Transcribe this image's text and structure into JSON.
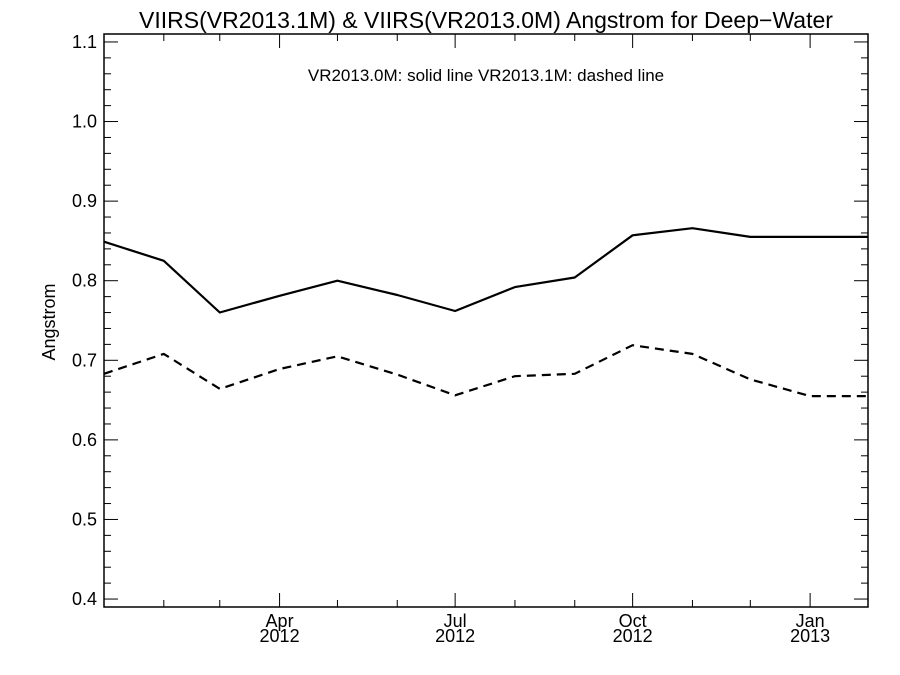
{
  "chart_data": {
    "type": "line",
    "title": "VIIRS(VR2013.1M) & VIIRS(VR2013.0M)  Angstrom for Deep−Water",
    "annotation": "VR2013.0M: solid line   VR2013.1M: dashed line",
    "ylabel": "Angstrom",
    "xlabel": "",
    "ylim": [
      0.39,
      1.11
    ],
    "xlim": [
      "2012-01-01",
      "2013-01-31"
    ],
    "yticks": [
      "0.4",
      "0.5",
      "0.6",
      "0.7",
      "0.8",
      "0.9",
      "1.0",
      "1.1"
    ],
    "xticks": [
      {
        "month": "Apr",
        "year": "2012",
        "date": "2012-04-01"
      },
      {
        "month": "Jul",
        "year": "2012",
        "date": "2012-07-01"
      },
      {
        "month": "Oct",
        "year": "2012",
        "date": "2012-10-01"
      },
      {
        "month": "Jan",
        "year": "2013",
        "date": "2013-01-01"
      }
    ],
    "x": [
      "2012-01-01",
      "2012-02-01",
      "2012-03-01",
      "2012-04-01",
      "2012-05-01",
      "2012-06-01",
      "2012-07-01",
      "2012-08-01",
      "2012-09-01",
      "2012-10-01",
      "2012-11-01",
      "2012-12-01",
      "2013-01-01",
      "2013-01-31"
    ],
    "series": [
      {
        "style": "solid",
        "values": [
          0.849,
          0.825,
          0.76,
          0.781,
          0.8,
          0.782,
          0.762,
          0.792,
          0.804,
          0.857,
          0.866,
          0.855,
          0.855,
          0.855
        ]
      },
      {
        "style": "dashed",
        "values": [
          0.683,
          0.708,
          0.664,
          0.689,
          0.705,
          0.682,
          0.656,
          0.68,
          0.683,
          0.719,
          0.708,
          0.676,
          0.655,
          0.655
        ]
      }
    ],
    "grid": false,
    "line_color": "#000000"
  }
}
